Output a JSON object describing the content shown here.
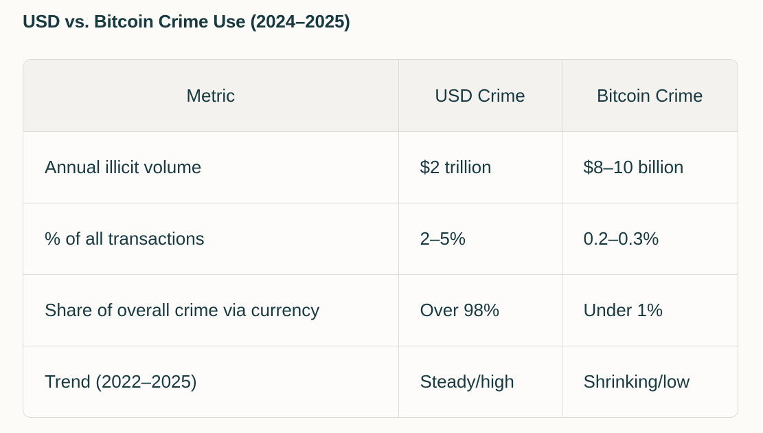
{
  "title": "USD vs. Bitcoin Crime Use (2024–2025)",
  "table": {
    "headers": [
      "Metric",
      "USD Crime",
      "Bitcoin Crime"
    ],
    "rows": [
      [
        "Annual illicit volume",
        "$2 trillion",
        "$8–10 billion"
      ],
      [
        "% of all transactions",
        "2–5%",
        "0.2–0.3%"
      ],
      [
        "Share of overall crime via currency",
        "Over 98%",
        "Under 1%"
      ],
      [
        "Trend (2022–2025)",
        "Steady/high",
        "Shrinking/low"
      ]
    ]
  }
}
